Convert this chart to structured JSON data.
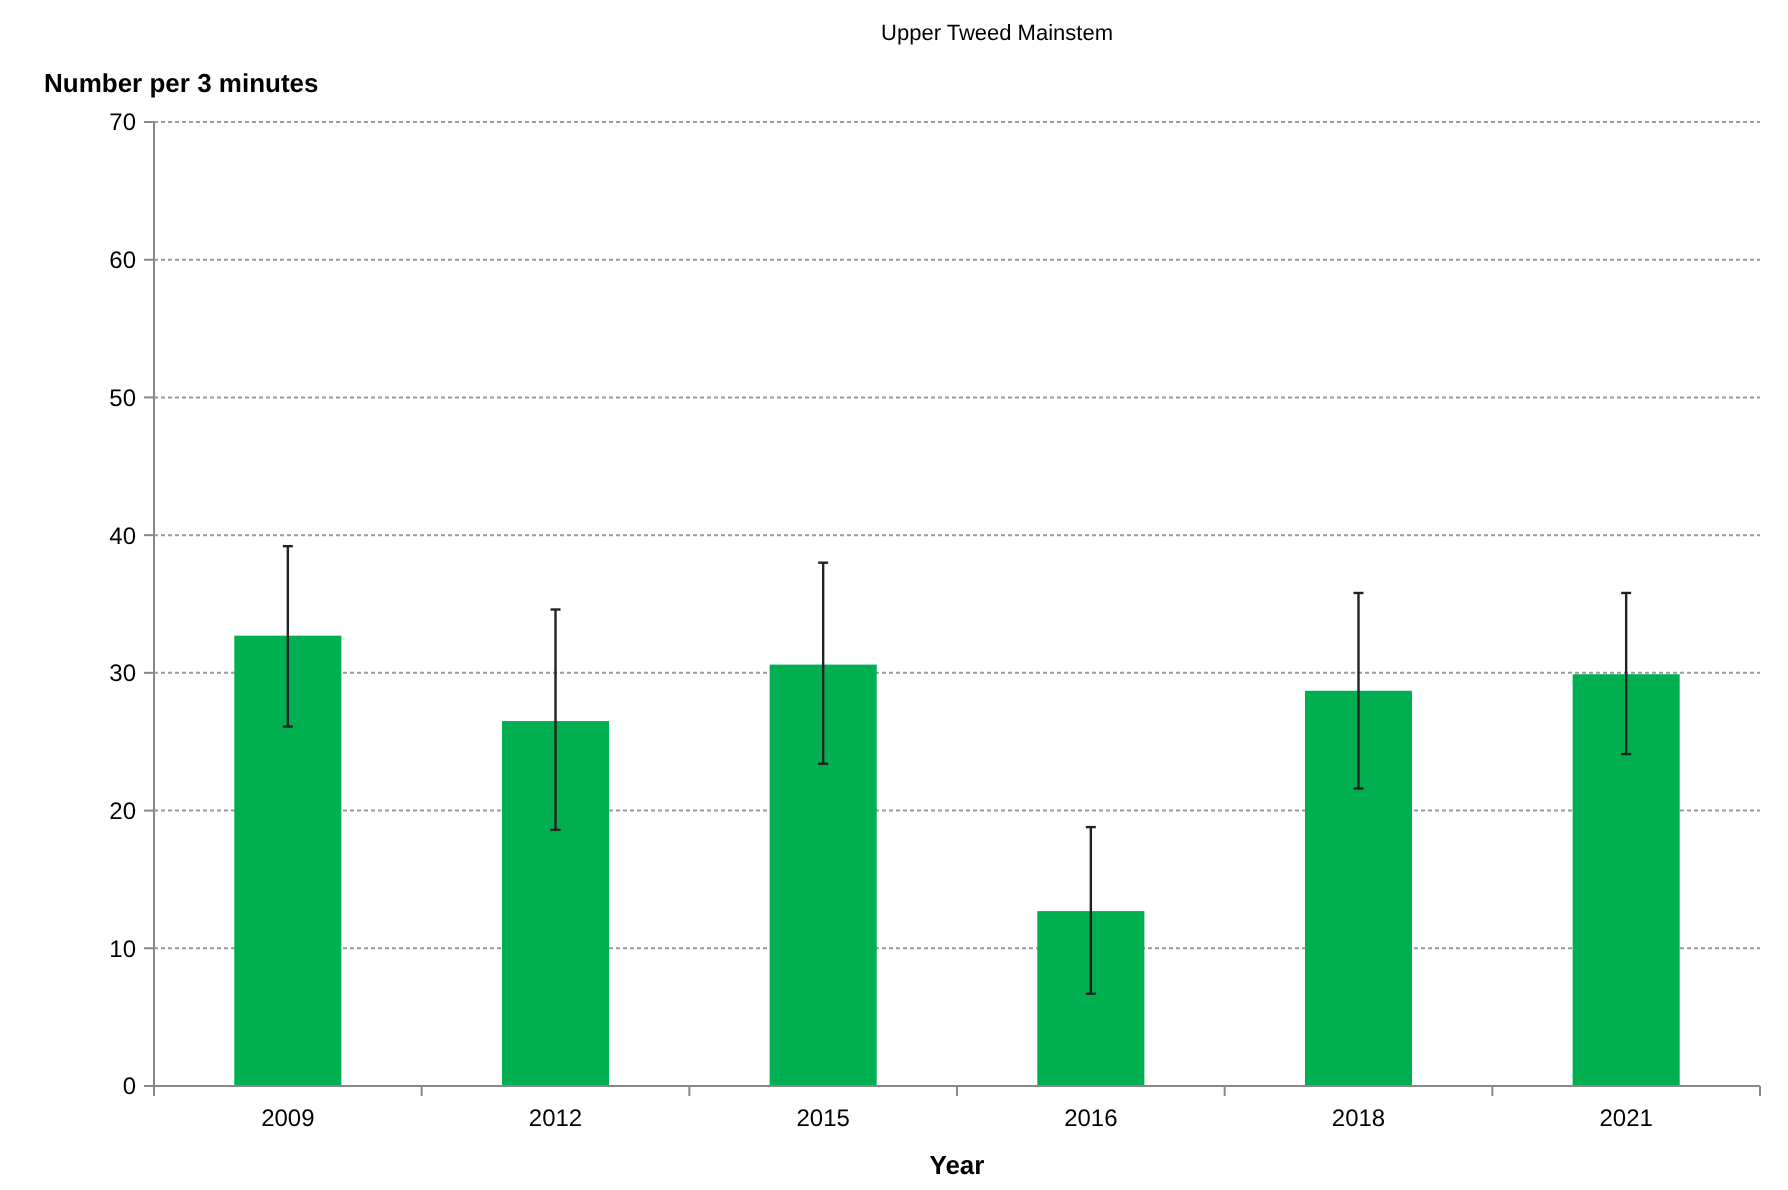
{
  "chart_data": {
    "type": "bar",
    "title": "Upper Tweed Mainstem",
    "xlabel": "Year",
    "ylabel": "Number per 3 minutes",
    "categories": [
      "2009",
      "2012",
      "2015",
      "2016",
      "2018",
      "2021"
    ],
    "values": [
      32.7,
      26.5,
      30.6,
      12.7,
      28.7,
      29.9
    ],
    "errors": [
      [
        26.1,
        39.2
      ],
      [
        18.6,
        34.6
      ],
      [
        23.4,
        38.0
      ],
      [
        6.7,
        18.8
      ],
      [
        21.6,
        35.8
      ],
      [
        24.1,
        35.8
      ]
    ],
    "color": "#00b050",
    "ylim": [
      0,
      70
    ],
    "yticks": [
      0,
      10,
      20,
      30,
      40,
      50,
      60,
      70
    ],
    "grid": "y"
  }
}
